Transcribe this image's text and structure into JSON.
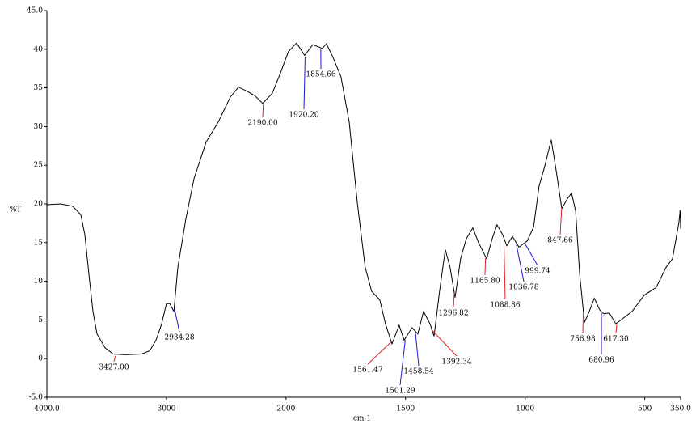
{
  "chart_data": {
    "type": "line",
    "x_label": "cm-1",
    "y_label": "%T",
    "xlim": [
      4000,
      350
    ],
    "x_scale_break": 2000,
    "xticks": [
      {
        "value": 4000,
        "label": "4000.0"
      },
      3000,
      2000,
      1500,
      1000,
      500,
      {
        "value": 350,
        "label": "350.0"
      }
    ],
    "ylim": [
      -5,
      45
    ],
    "yticks": [
      {
        "value": -5,
        "label": "-5.0"
      },
      0,
      5,
      10,
      15,
      20,
      25,
      30,
      35,
      40,
      {
        "value": 45,
        "label": "45.0"
      }
    ],
    "grid": false,
    "line_color": "#000000",
    "x": [
      4000,
      3885,
      3784,
      3716,
      3682,
      3648,
      3615,
      3581,
      3513,
      3446,
      3344,
      3209,
      3141,
      3087,
      3040,
      3000,
      2972,
      2938,
      2905,
      2837,
      2769,
      2668,
      2567,
      2466,
      2398,
      2330,
      2262,
      2195,
      2115,
      2047,
      1990,
      1956,
      1922,
      1888,
      1848,
      1831,
      1804,
      1770,
      1736,
      1702,
      1669,
      1642,
      1608,
      1584,
      1557,
      1527,
      1506,
      1473,
      1449,
      1425,
      1398,
      1381,
      1358,
      1334,
      1314,
      1293,
      1270,
      1246,
      1219,
      1195,
      1161,
      1138,
      1118,
      1094,
      1077,
      1053,
      1026,
      992,
      965,
      942,
      918,
      891,
      871,
      847,
      823,
      806,
      789,
      772,
      752,
      732,
      711,
      688,
      671,
      648,
      621,
      604,
      553,
      502,
      452,
      411,
      384,
      357,
      352,
      350
    ],
    "values": [
      19.9,
      20.0,
      19.7,
      18.6,
      16.0,
      10.8,
      6.1,
      3.2,
      1.4,
      0.6,
      0.5,
      0.6,
      1.0,
      2.4,
      4.5,
      7.1,
      7.1,
      6.1,
      11.8,
      18.1,
      23.3,
      28.0,
      30.6,
      33.8,
      35.1,
      34.6,
      34.0,
      33.0,
      34.3,
      36.9,
      39.7,
      40.8,
      39.2,
      40.6,
      40.1,
      40.7,
      39.0,
      36.4,
      30.6,
      20.2,
      11.8,
      8.7,
      7.6,
      4.5,
      1.9,
      4.3,
      2.4,
      4.0,
      3.2,
      6.1,
      4.5,
      2.9,
      8.7,
      14.1,
      11.8,
      7.9,
      12.9,
      15.5,
      16.9,
      15.0,
      12.9,
      15.5,
      17.3,
      16.0,
      14.6,
      15.8,
      14.4,
      15.2,
      17.0,
      22.3,
      24.9,
      28.3,
      24.4,
      19.4,
      20.7,
      21.4,
      19.1,
      10.8,
      4.7,
      6.1,
      7.8,
      6.3,
      5.8,
      5.9,
      4.5,
      4.9,
      6.1,
      8.2,
      9.2,
      11.8,
      12.9,
      17.6,
      19.2,
      16.8
    ],
    "annotations": [
      {
        "label": "3427.00",
        "x": 3427.0,
        "color": "#e02020"
      },
      {
        "label": "2934.28",
        "x": 2934.28,
        "color": "#1a1ad0"
      },
      {
        "label": "2190.00",
        "x": 2190.0,
        "color": "#e02020"
      },
      {
        "label": "1920.20",
        "x": 1920.2,
        "color": "#1a1ad0"
      },
      {
        "label": "1854.66",
        "x": 1854.66,
        "color": "#1a1ad0"
      },
      {
        "label": "1561.47",
        "x": 1561.47,
        "color": "#e02020"
      },
      {
        "label": "1501.29",
        "x": 1501.29,
        "color": "#1a1ad0"
      },
      {
        "label": "1458.54",
        "x": 1458.54,
        "color": "#1a1ad0"
      },
      {
        "label": "1392.34",
        "x": 1392.34,
        "color": "#e02020"
      },
      {
        "label": "1296.82",
        "x": 1296.82,
        "color": "#e02020"
      },
      {
        "label": "1165.80",
        "x": 1165.8,
        "color": "#e02020"
      },
      {
        "label": "1088.86",
        "x": 1088.86,
        "color": "#e02020"
      },
      {
        "label": "1036.78",
        "x": 1036.78,
        "color": "#1a1ad0"
      },
      {
        "label": "999.74",
        "x": 999.74,
        "color": "#1a1ad0"
      },
      {
        "label": "847.66",
        "x": 847.66,
        "color": "#e02020"
      },
      {
        "label": "756.98",
        "x": 756.98,
        "color": "#e02020"
      },
      {
        "label": "680.96",
        "x": 680.96,
        "color": "#1a1ad0"
      },
      {
        "label": "617.30",
        "x": 617.3,
        "color": "#e02020"
      }
    ]
  }
}
